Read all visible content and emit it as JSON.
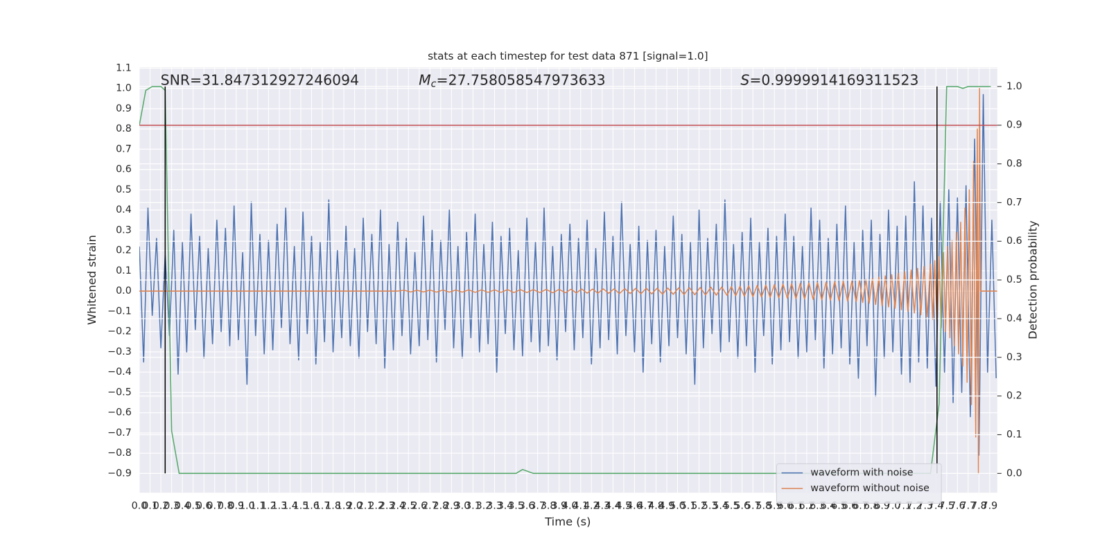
{
  "chart_data": {
    "type": "line",
    "title": "stats at each timestep for test data 871 [signal=1.0]",
    "x_label": "Time (s)",
    "y_label": "Whitened strain",
    "y2_label": "Detection probability",
    "grid": true,
    "background": "#eaeaf2",
    "legend": "lower right",
    "annotations": [
      {
        "text": "SNR=31.847312927246094"
      },
      {
        "symbol": "M",
        "sub": "c",
        "text": "=27.758058547973633"
      },
      {
        "symbol": "S",
        "text": "=0.9999914169311523"
      }
    ],
    "xlim": [
      0,
      7.97
    ],
    "ylim": [
      -0.995,
      1.105
    ],
    "y2lim": [
      -0.05,
      1.05
    ],
    "xticks": [
      {
        "value": 0,
        "label": "0.0"
      },
      0.1,
      0.2,
      0.3,
      0.4,
      0.5,
      0.6,
      0.7,
      0.8,
      0.9,
      {
        "value": 1,
        "label": "1.0"
      },
      1.1,
      1.2,
      1.3,
      1.4,
      1.5,
      1.6,
      1.7,
      1.8,
      1.9,
      {
        "value": 2,
        "label": "2.0"
      },
      2.1,
      2.2,
      2.3,
      2.4,
      2.5,
      2.6,
      2.7,
      2.8,
      2.9,
      {
        "value": 3,
        "label": "3.0"
      },
      3.1,
      3.2,
      3.3,
      3.4,
      3.5,
      3.6,
      3.7,
      3.8,
      3.9,
      {
        "value": 4,
        "label": "4.0"
      },
      4.1,
      4.2,
      4.3,
      4.4,
      4.5,
      4.6,
      4.7,
      4.8,
      4.9,
      {
        "value": 5,
        "label": "5.0"
      },
      5.1,
      5.2,
      5.3,
      5.4,
      5.5,
      5.6,
      5.7,
      5.8,
      5.9,
      {
        "value": 6,
        "label": "6.0"
      },
      6.1,
      6.2,
      6.3,
      6.4,
      6.5,
      6.6,
      6.7,
      6.8,
      6.9,
      {
        "value": 7,
        "label": "7.0"
      },
      7.1,
      7.2,
      7.3,
      7.4,
      7.5,
      7.6,
      7.7,
      7.8,
      7.9
    ],
    "yticks": [
      {
        "value": -0.9,
        "label": "−0.9"
      },
      {
        "value": -0.8,
        "label": "−0.8"
      },
      {
        "value": -0.7,
        "label": "−0.7"
      },
      {
        "value": -0.6,
        "label": "−0.6"
      },
      {
        "value": -0.5,
        "label": "−0.5"
      },
      {
        "value": -0.4,
        "label": "−0.4"
      },
      {
        "value": -0.3,
        "label": "−0.3"
      },
      {
        "value": -0.2,
        "label": "−0.2"
      },
      {
        "value": -0.1,
        "label": "−0.1"
      },
      {
        "value": 0,
        "label": "0.0"
      },
      0.1,
      0.2,
      0.3,
      0.4,
      0.5,
      0.6,
      0.7,
      0.8,
      0.9,
      {
        "value": 1,
        "label": "1.0"
      },
      1.1
    ],
    "y2ticks": [
      {
        "value": 0,
        "label": "0.0"
      },
      0.1,
      0.2,
      0.3,
      0.4,
      0.5,
      0.6,
      0.7,
      0.8,
      0.9,
      {
        "value": 1,
        "label": "1.0"
      }
    ],
    "series": [
      {
        "name": "waveform with noise",
        "color": "#4c72b0",
        "axis": "y",
        "x": [
          0,
          0.04,
          0.08,
          0.12,
          0.16,
          0.2,
          0.24,
          0.28,
          0.32,
          0.36,
          0.4,
          0.44,
          0.48,
          0.52,
          0.56,
          0.6,
          0.64,
          0.68,
          0.72,
          0.76,
          0.8,
          0.84,
          0.88,
          0.92,
          0.96,
          1,
          1.04,
          1.08,
          1.12,
          1.16,
          1.2,
          1.24,
          1.28,
          1.32,
          1.36,
          1.4,
          1.44,
          1.48,
          1.52,
          1.56,
          1.6,
          1.64,
          1.68,
          1.72,
          1.76,
          1.8,
          1.84,
          1.88,
          1.92,
          1.96,
          2,
          2.04,
          2.08,
          2.12,
          2.16,
          2.2,
          2.24,
          2.28,
          2.32,
          2.36,
          2.4,
          2.44,
          2.48,
          2.52,
          2.56,
          2.6,
          2.64,
          2.68,
          2.72,
          2.76,
          2.8,
          2.84,
          2.88,
          2.92,
          2.96,
          3,
          3.04,
          3.08,
          3.12,
          3.16,
          3.2,
          3.24,
          3.28,
          3.32,
          3.36,
          3.4,
          3.44,
          3.48,
          3.52,
          3.56,
          3.6,
          3.64,
          3.68,
          3.72,
          3.76,
          3.8,
          3.84,
          3.88,
          3.92,
          3.96,
          4,
          4.04,
          4.08,
          4.12,
          4.16,
          4.2,
          4.24,
          4.28,
          4.32,
          4.36,
          4.4,
          4.44,
          4.48,
          4.52,
          4.56,
          4.6,
          4.64,
          4.68,
          4.72,
          4.76,
          4.8,
          4.84,
          4.88,
          4.92,
          4.96,
          5,
          5.04,
          5.08,
          5.12,
          5.16,
          5.2,
          5.24,
          5.28,
          5.32,
          5.36,
          5.4,
          5.44,
          5.48,
          5.52,
          5.56,
          5.6,
          5.64,
          5.68,
          5.72,
          5.76,
          5.8,
          5.84,
          5.88,
          5.92,
          5.96,
          6,
          6.04,
          6.08,
          6.12,
          6.16,
          6.2,
          6.24,
          6.28,
          6.32,
          6.36,
          6.4,
          6.44,
          6.48,
          6.52,
          6.56,
          6.6,
          6.64,
          6.68,
          6.72,
          6.76,
          6.8,
          6.84,
          6.88,
          6.92,
          6.96,
          7,
          7.04,
          7.08,
          7.12,
          7.16,
          7.2,
          7.24,
          7.28,
          7.32,
          7.36,
          7.4,
          7.44,
          7.48,
          7.52,
          7.56,
          7.6,
          7.64,
          7.68,
          7.72,
          7.76,
          7.8,
          7.84,
          7.88,
          7.92,
          7.96
        ],
        "values": [
          0.22,
          -0.35,
          0.41,
          -0.12,
          0.26,
          -0.28,
          0.18,
          -0.22,
          0.3,
          -0.41,
          0.24,
          -0.3,
          0.38,
          -0.19,
          0.27,
          -0.33,
          0.21,
          -0.26,
          0.35,
          -0.2,
          0.31,
          -0.27,
          0.42,
          -0.24,
          0.19,
          -0.46,
          0.44,
          -0.22,
          0.28,
          -0.31,
          0.25,
          -0.29,
          0.33,
          -0.18,
          0.41,
          -0.26,
          0.22,
          -0.34,
          0.39,
          -0.21,
          0.27,
          -0.36,
          0.24,
          -0.25,
          0.45,
          -0.3,
          0.2,
          -0.23,
          0.32,
          -0.27,
          0.21,
          -0.33,
          0.36,
          -0.2,
          0.28,
          -0.26,
          0.4,
          -0.38,
          0.23,
          -0.29,
          0.34,
          -0.22,
          0.26,
          -0.31,
          0.19,
          -0.27,
          0.37,
          -0.24,
          0.3,
          -0.35,
          0.25,
          -0.19,
          0.4,
          -0.28,
          0.22,
          -0.33,
          0.29,
          -0.23,
          0.38,
          -0.3,
          0.23,
          -0.26,
          0.34,
          -0.4,
          0.27,
          -0.21,
          0.31,
          -0.29,
          0.2,
          -0.32,
          0.36,
          -0.25,
          0.24,
          -0.3,
          0.41,
          -0.27,
          0.22,
          -0.34,
          0.28,
          -0.2,
          0.33,
          -0.29,
          0.26,
          -0.23,
          0.35,
          -0.36,
          0.21,
          -0.28,
          0.39,
          -0.24,
          0.27,
          -0.31,
          0.44,
          -0.22,
          0.23,
          -0.3,
          0.32,
          -0.4,
          0.25,
          -0.26,
          0.3,
          -0.35,
          0.22,
          -0.27,
          0.37,
          -0.23,
          0.28,
          -0.31,
          0.24,
          -0.46,
          0.4,
          -0.28,
          0.26,
          -0.21,
          0.33,
          -0.3,
          0.45,
          -0.25,
          0.23,
          -0.33,
          0.29,
          -0.27,
          0.36,
          -0.4,
          0.24,
          -0.22,
          0.31,
          -0.36,
          0.27,
          -0.29,
          0.38,
          -0.25,
          0.27,
          -0.33,
          0.22,
          -0.3,
          0.41,
          -0.24,
          0.35,
          -0.38,
          0.26,
          -0.31,
          0.33,
          -0.28,
          0.42,
          -0.36,
          0.24,
          -0.43,
          0.3,
          -0.27,
          0.35,
          -0.52,
          0.28,
          -0.33,
          0.4,
          -0.3,
          0.32,
          -0.41,
          0.37,
          -0.45,
          0.54,
          -0.35,
          0.42,
          -0.38,
          0.36,
          -0.47,
          0.44,
          -0.4,
          0.5,
          -0.55,
          0.46,
          -0.5,
          0.52,
          -0.62,
          0.75,
          -0.81,
          0.97,
          -0.4,
          0.35,
          -0.43
        ]
      },
      {
        "name": "waveform without noise",
        "color": "#dd8452",
        "axis": "y",
        "x": [
          0,
          2.4,
          2.46,
          2.52,
          2.58,
          2.64,
          2.7,
          2.76,
          2.82,
          2.88,
          2.94,
          3,
          3.06,
          3.12,
          3.18,
          3.24,
          3.3,
          3.36,
          3.42,
          3.48,
          3.54,
          3.6,
          3.66,
          3.72,
          3.78,
          3.84,
          3.9,
          3.96,
          4.01,
          4.06,
          4.11,
          4.16,
          4.21,
          4.26,
          4.31,
          4.36,
          4.41,
          4.46,
          4.51,
          4.56,
          4.61,
          4.66,
          4.71,
          4.76,
          4.81,
          4.86,
          4.91,
          4.96,
          5.01,
          5.06,
          5.11,
          5.16,
          5.21,
          5.26,
          5.31,
          5.36,
          5.41,
          5.46,
          5.5,
          5.54,
          5.58,
          5.62,
          5.66,
          5.7,
          5.74,
          5.78,
          5.82,
          5.86,
          5.9,
          5.94,
          5.98,
          6.02,
          6.06,
          6.1,
          6.14,
          6.18,
          6.22,
          6.26,
          6.3,
          6.34,
          6.38,
          6.42,
          6.46,
          6.5,
          6.54,
          6.58,
          6.62,
          6.66,
          6.69,
          6.72,
          6.75,
          6.78,
          6.81,
          6.84,
          6.87,
          6.9,
          6.93,
          6.96,
          6.99,
          7.02,
          7.05,
          7.08,
          7.11,
          7.14,
          7.17,
          7.2,
          7.23,
          7.26,
          7.29,
          7.32,
          7.35,
          7.37,
          7.39,
          7.41,
          7.43,
          7.45,
          7.47,
          7.49,
          7.51,
          7.53,
          7.55,
          7.57,
          7.59,
          7.61,
          7.63,
          7.65,
          7.67,
          7.69,
          7.71,
          7.73,
          7.75,
          7.77,
          7.785,
          7.795,
          7.805,
          7.815,
          7.97
        ],
        "values": [
          0,
          0,
          0.004,
          -0.004,
          0.004,
          -0.004,
          0.005,
          -0.005,
          0.005,
          -0.005,
          0.005,
          -0.005,
          0.006,
          -0.006,
          0.006,
          -0.006,
          0.006,
          -0.006,
          0.007,
          -0.007,
          0.007,
          -0.007,
          0.007,
          -0.007,
          0.008,
          -0.008,
          0.008,
          -0.008,
          0.009,
          -0.009,
          0.01,
          -0.01,
          0.01,
          -0.01,
          0.011,
          -0.011,
          0.011,
          -0.012,
          0.012,
          -0.012,
          0.013,
          -0.013,
          0.014,
          -0.014,
          0.014,
          -0.015,
          0.015,
          -0.016,
          0.016,
          -0.017,
          0.017,
          -0.018,
          0.018,
          -0.019,
          0.019,
          -0.02,
          0.02,
          -0.021,
          0.022,
          -0.023,
          0.024,
          -0.025,
          0.026,
          -0.027,
          0.028,
          -0.029,
          0.03,
          -0.031,
          0.032,
          -0.033,
          0.034,
          -0.035,
          0.036,
          -0.037,
          0.038,
          -0.039,
          0.04,
          -0.041,
          0.042,
          -0.043,
          0.044,
          -0.045,
          0.046,
          -0.047,
          0.048,
          -0.049,
          0.05,
          -0.052,
          0.054,
          -0.056,
          0.058,
          -0.06,
          0.063,
          -0.066,
          0.069,
          -0.072,
          0.075,
          -0.078,
          0.081,
          -0.085,
          0.088,
          -0.092,
          0.096,
          -0.1,
          0.104,
          -0.108,
          0.112,
          -0.117,
          0.122,
          -0.127,
          0.132,
          -0.14,
          0.15,
          -0.16,
          0.17,
          -0.18,
          0.19,
          -0.2,
          0.22,
          -0.23,
          0.25,
          -0.27,
          0.29,
          -0.31,
          0.34,
          -0.37,
          0.41,
          -0.45,
          0.5,
          -0.56,
          0.64,
          -0.72,
          0.8,
          -0.9,
          1,
          0,
          0
        ]
      },
      {
        "color": "#55a868",
        "axis": "y2",
        "x": [
          0,
          0.06,
          0.12,
          0.2,
          0.24,
          0.3,
          0.37,
          3.5,
          3.56,
          3.66,
          7.35,
          7.43,
          7.5,
          7.6,
          7.65,
          7.7,
          7.91
        ],
        "values": [
          0.9,
          0.99,
          1,
          1,
          0.99,
          0.11,
          0,
          0,
          0.01,
          0,
          0,
          0.18,
          1,
          1,
          0.995,
          1,
          1
        ]
      }
    ],
    "hlines": [
      {
        "value": 0.9,
        "axis": "y2",
        "color": "#c44e52"
      }
    ],
    "vlines": [
      {
        "x": 0.24,
        "ymin": 0,
        "ymax": 1,
        "axis": "y2",
        "color": "#000000"
      },
      {
        "x": 7.41,
        "ymin": 0,
        "ymax": 1,
        "axis": "y2",
        "color": "#000000"
      }
    ]
  }
}
